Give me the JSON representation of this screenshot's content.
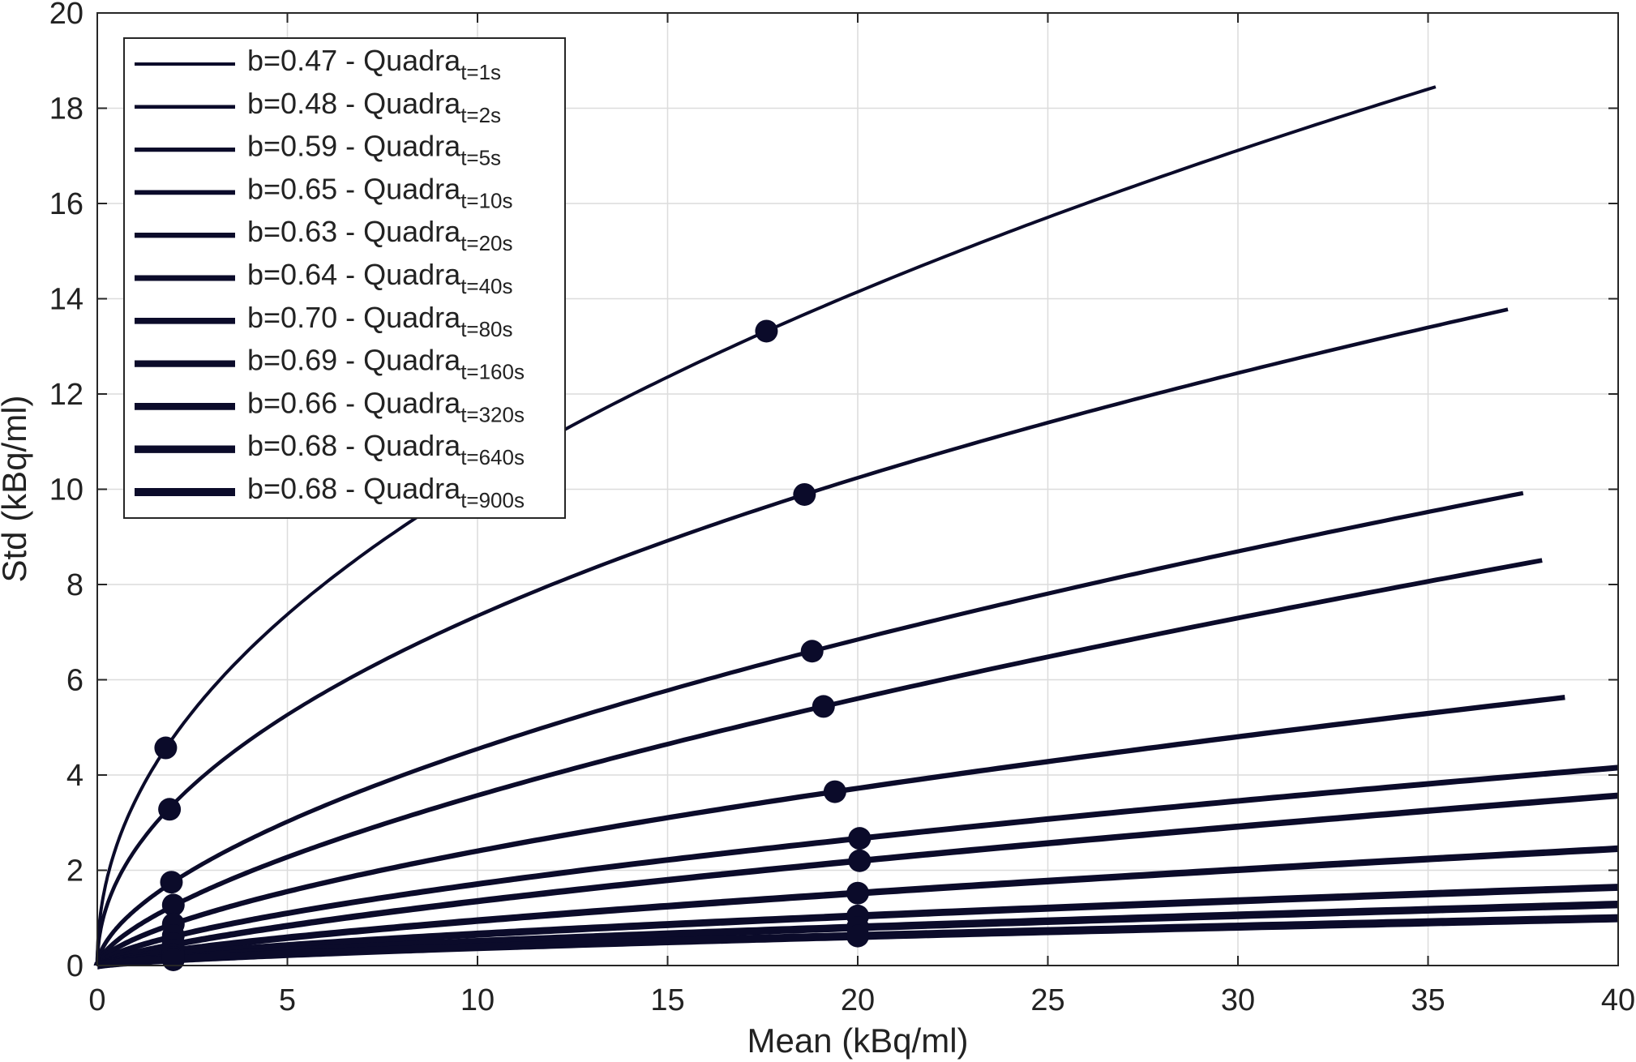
{
  "chart_data": {
    "type": "line",
    "title": "",
    "xlabel": "Mean (kBq/ml)",
    "ylabel": "Std (kBq/ml)",
    "xlim": [
      0,
      40
    ],
    "ylim": [
      0,
      20
    ],
    "xticks": [
      0,
      5,
      10,
      15,
      20,
      25,
      30,
      35,
      40
    ],
    "yticks": [
      0,
      2,
      4,
      6,
      8,
      10,
      12,
      14,
      16,
      18,
      20
    ],
    "grid": true,
    "legend_position": "top-left",
    "legend_prefix": "Quadra",
    "line_color": "#0b0b2a",
    "series": [
      {
        "name": "b=0.47",
        "legend_main": "b=0.47  -  Quadra",
        "legend_sub": "t=1s",
        "b": 0.47,
        "x_max": 35.2,
        "line_width": 4,
        "markers": [
          {
            "x": 1.8,
            "y": 4.57
          },
          {
            "x": 17.6,
            "y": 13.32
          }
        ]
      },
      {
        "name": "b=0.48",
        "legend_main": "b=0.48  -  Quadra",
        "legend_sub": "t=2s",
        "b": 0.48,
        "x_max": 37.1,
        "line_width": 4.6,
        "markers": [
          {
            "x": 1.9,
            "y": 3.28
          },
          {
            "x": 18.6,
            "y": 9.89
          }
        ]
      },
      {
        "name": "b=0.59",
        "legend_main": "b=0.59  -  Quadra",
        "legend_sub": "t=5s",
        "b": 0.59,
        "x_max": 37.5,
        "line_width": 5.2,
        "markers": [
          {
            "x": 1.95,
            "y": 1.75
          },
          {
            "x": 18.8,
            "y": 6.6
          }
        ]
      },
      {
        "name": "b=0.65",
        "legend_main": "b=0.65  -  Quadra",
        "legend_sub": "t=10s",
        "b": 0.65,
        "x_max": 38.0,
        "line_width": 5.8,
        "markers": [
          {
            "x": 2.0,
            "y": 1.27
          },
          {
            "x": 19.1,
            "y": 5.44
          }
        ]
      },
      {
        "name": "b=0.63",
        "legend_main": "b=0.63  -  Quadra",
        "legend_sub": "t=20s",
        "b": 0.63,
        "x_max": 38.6,
        "line_width": 6.4,
        "markers": [
          {
            "x": 2.0,
            "y": 0.87
          },
          {
            "x": 19.4,
            "y": 3.65
          }
        ]
      },
      {
        "name": "b=0.64",
        "legend_main": "b=0.64  -  Quadra",
        "legend_sub": "t=40s",
        "b": 0.64,
        "x_max": 40,
        "line_width": 7,
        "markers": [
          {
            "x": 2.0,
            "y": 0.63
          },
          {
            "x": 20.05,
            "y": 2.67
          }
        ]
      },
      {
        "name": "b=0.70",
        "legend_main": "b=0.70  -  Quadra",
        "legend_sub": "t=80s",
        "b": 0.7,
        "x_max": 40,
        "line_width": 7.6,
        "markers": [
          {
            "x": 2.0,
            "y": 0.46
          },
          {
            "x": 20.05,
            "y": 2.2
          }
        ]
      },
      {
        "name": "b=0.69",
        "legend_main": "b=0.69  -  Quadra",
        "legend_sub": "t=160s",
        "b": 0.69,
        "x_max": 40,
        "line_width": 8.2,
        "markers": [
          {
            "x": 2.0,
            "y": 0.32
          },
          {
            "x": 20.0,
            "y": 1.52
          }
        ]
      },
      {
        "name": "b=0.66",
        "legend_main": "b=0.66  -  Quadra",
        "legend_sub": "t=320s",
        "b": 0.66,
        "x_max": 40,
        "line_width": 8.8,
        "markers": [
          {
            "x": 2.0,
            "y": 0.23
          },
          {
            "x": 20.0,
            "y": 1.04
          }
        ]
      },
      {
        "name": "b=0.68",
        "legend_main": "b=0.68  -  Quadra",
        "legend_sub": "t=640s",
        "b": 0.68,
        "x_max": 40,
        "line_width": 9.4,
        "markers": [
          {
            "x": 2.0,
            "y": 0.17
          },
          {
            "x": 20.0,
            "y": 0.8
          }
        ]
      },
      {
        "name": "b=0.68",
        "legend_main": "b=0.68  -  Quadra",
        "legend_sub": "t=900s",
        "b": 0.68,
        "x_max": 40,
        "line_width": 10,
        "markers": [
          {
            "x": 2.0,
            "y": 0.12
          },
          {
            "x": 20.0,
            "y": 0.62
          }
        ]
      }
    ]
  }
}
